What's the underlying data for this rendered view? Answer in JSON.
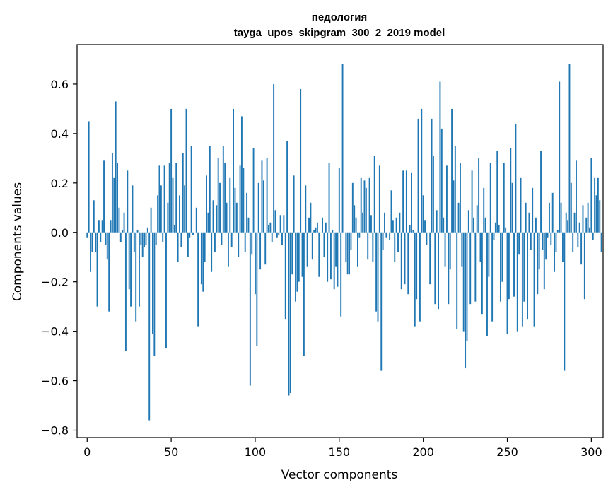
{
  "chart_data": {
    "type": "bar",
    "title": "педология",
    "subtitle": "tayga_upos_skipgram_300_2_2019 model",
    "xlabel": "Vector components",
    "ylabel": "Components values",
    "xlim": [
      -6,
      307
    ],
    "ylim": [
      -0.83,
      0.76
    ],
    "xticks": [
      0,
      50,
      100,
      150,
      200,
      250,
      300
    ],
    "xtick_labels": [
      "0",
      "50",
      "100",
      "150",
      "200",
      "250",
      "300"
    ],
    "yticks": [
      -0.8,
      -0.6,
      -0.4,
      -0.2,
      0.0,
      0.2,
      0.4,
      0.6
    ],
    "ytick_labels": [
      "−0.8",
      "−0.6",
      "−0.4",
      "−0.2",
      "0.0",
      "0.2",
      "0.4",
      "0.6"
    ],
    "grid": false,
    "bar_color": "#1f77b4",
    "values": [
      -0.02,
      0.45,
      -0.16,
      -0.08,
      0.13,
      -0.08,
      -0.3,
      0.05,
      -0.04,
      0.05,
      0.29,
      -0.05,
      -0.11,
      -0.32,
      0.05,
      0.32,
      0.22,
      0.53,
      0.28,
      0.1,
      -0.04,
      0.01,
      0.08,
      -0.48,
      0.25,
      -0.23,
      -0.3,
      0.19,
      -0.08,
      -0.36,
      0.01,
      -0.3,
      -0.05,
      -0.1,
      -0.06,
      -0.05,
      0.02,
      -0.76,
      0.1,
      -0.41,
      -0.5,
      -0.05,
      0.15,
      0.27,
      0.19,
      -0.04,
      0.27,
      -0.47,
      0.12,
      0.28,
      0.5,
      0.22,
      0.03,
      0.28,
      -0.12,
      0.15,
      -0.06,
      0.32,
      0.19,
      0.5,
      -0.1,
      -0.02,
      0.35,
      -0.01,
      0.0,
      0.1,
      -0.38,
      0.0,
      -0.21,
      -0.24,
      -0.12,
      0.23,
      0.08,
      0.35,
      -0.16,
      0.13,
      -0.08,
      0.11,
      0.3,
      0.2,
      -0.05,
      0.35,
      0.28,
      0.12,
      -0.14,
      0.22,
      -0.06,
      0.5,
      0.18,
      0.12,
      -0.1,
      0.27,
      0.47,
      0.26,
      -0.08,
      0.16,
      0.06,
      -0.62,
      -0.09,
      0.34,
      -0.25,
      -0.46,
      0.2,
      -0.15,
      0.29,
      0.21,
      -0.13,
      0.3,
      0.03,
      0.04,
      -0.04,
      0.6,
      0.09,
      -0.02,
      -0.01,
      0.07,
      -0.05,
      0.07,
      -0.35,
      0.37,
      -0.66,
      -0.65,
      -0.17,
      0.23,
      -0.28,
      -0.24,
      -0.2,
      0.58,
      -0.18,
      -0.5,
      0.19,
      -0.14,
      0.06,
      0.12,
      -0.11,
      0.01,
      0.02,
      0.04,
      -0.18,
      0.0,
      0.06,
      -0.1,
      0.04,
      -0.2,
      0.28,
      -0.19,
      0.01,
      -0.23,
      -0.14,
      -0.22,
      0.26,
      -0.34,
      0.68,
      0.0,
      -0.12,
      -0.17,
      -0.17,
      -0.07,
      0.2,
      0.11,
      0.06,
      -0.14,
      -0.02,
      0.22,
      0.08,
      0.21,
      0.18,
      -0.11,
      0.22,
      0.07,
      -0.12,
      0.31,
      -0.32,
      -0.36,
      0.27,
      -0.56,
      -0.07,
      0.08,
      -0.02,
      0.0,
      -0.03,
      0.17,
      0.05,
      -0.12,
      0.06,
      -0.08,
      0.08,
      -0.23,
      0.25,
      -0.21,
      0.25,
      -0.25,
      0.03,
      0.24,
      0.01,
      -0.38,
      -0.27,
      0.46,
      -0.36,
      0.5,
      0.15,
      0.05,
      -0.05,
      0.0,
      -0.21,
      0.46,
      0.31,
      -0.29,
      0.09,
      -0.31,
      0.61,
      0.42,
      0.06,
      -0.14,
      0.27,
      -0.29,
      -0.15,
      0.5,
      0.21,
      0.35,
      -0.39,
      0.12,
      0.28,
      -0.14,
      -0.4,
      -0.55,
      -0.44,
      0.09,
      -0.29,
      0.25,
      0.06,
      -0.28,
      0.11,
      0.3,
      -0.12,
      -0.33,
      0.18,
      0.06,
      -0.42,
      -0.18,
      0.28,
      -0.36,
      -0.03,
      0.04,
      0.33,
      0.03,
      -0.28,
      -0.2,
      0.28,
      0.02,
      -0.41,
      -0.27,
      0.34,
      0.2,
      -0.26,
      0.44,
      -0.4,
      -0.09,
      0.22,
      -0.38,
      -0.28,
      0.12,
      -0.35,
      0.08,
      -0.07,
      0.18,
      -0.38,
      0.06,
      -0.25,
      -0.15,
      0.33,
      -0.07,
      -0.23,
      -0.11,
      -0.02,
      0.12,
      -0.05,
      0.16,
      -0.16,
      -0.08,
      0.01,
      0.61,
      0.12,
      -0.12,
      -0.56,
      0.08,
      0.05,
      0.68,
      0.2,
      -0.08,
      0.08,
      0.29,
      -0.06,
      0.04,
      -0.13,
      0.11,
      -0.27,
      0.06,
      0.12,
      0.02,
      0.3,
      -0.03,
      0.22,
      0.15,
      0.22,
      0.13,
      -0.08
    ]
  }
}
